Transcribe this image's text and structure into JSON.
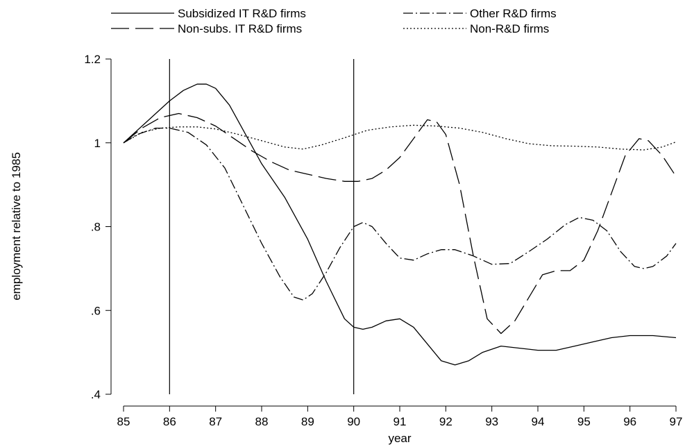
{
  "chart_data": {
    "type": "line",
    "title": "",
    "xlabel": "year",
    "ylabel": "employment relative to 1985",
    "xlim": [
      85,
      97
    ],
    "ylim": [
      0.4,
      1.2
    ],
    "x_ticks": [
      85,
      86,
      87,
      88,
      89,
      90,
      91,
      92,
      93,
      94,
      95,
      96,
      97
    ],
    "x_tick_labels": [
      "85",
      "86",
      "87",
      "88",
      "89",
      "90",
      "91",
      "92",
      "93",
      "94",
      "95",
      "96",
      "97"
    ],
    "y_ticks": [
      0.4,
      0.6,
      0.8,
      1.0,
      1.2
    ],
    "y_tick_labels": [
      ".4",
      ".6",
      ".8",
      "1",
      "1.2"
    ],
    "grid": false,
    "legend_position": "top",
    "reference_lines_x": [
      86,
      90
    ],
    "series": [
      {
        "name": "Subsidized IT R&D firms",
        "style": "solid",
        "points": [
          [
            85,
            1.0
          ],
          [
            85.5,
            1.05
          ],
          [
            86,
            1.1
          ],
          [
            86.3,
            1.125
          ],
          [
            86.6,
            1.14
          ],
          [
            86.8,
            1.14
          ],
          [
            87,
            1.13
          ],
          [
            87.3,
            1.09
          ],
          [
            87.6,
            1.03
          ],
          [
            88,
            0.95
          ],
          [
            88.5,
            0.87
          ],
          [
            89,
            0.77
          ],
          [
            89.4,
            0.67
          ],
          [
            89.8,
            0.58
          ],
          [
            90,
            0.56
          ],
          [
            90.2,
            0.555
          ],
          [
            90.4,
            0.56
          ],
          [
            90.7,
            0.575
          ],
          [
            91,
            0.58
          ],
          [
            91.3,
            0.56
          ],
          [
            91.6,
            0.52
          ],
          [
            91.9,
            0.48
          ],
          [
            92.2,
            0.47
          ],
          [
            92.5,
            0.48
          ],
          [
            92.8,
            0.5
          ],
          [
            93.2,
            0.515
          ],
          [
            93.6,
            0.51
          ],
          [
            94,
            0.505
          ],
          [
            94.4,
            0.505
          ],
          [
            94.8,
            0.515
          ],
          [
            95.2,
            0.525
          ],
          [
            95.6,
            0.535
          ],
          [
            96,
            0.54
          ],
          [
            96.5,
            0.54
          ],
          [
            97,
            0.535
          ]
        ]
      },
      {
        "name": "Non-subs. IT R&D firms",
        "style": "long-dash",
        "points": [
          [
            85,
            1.0
          ],
          [
            85.4,
            1.035
          ],
          [
            85.8,
            1.06
          ],
          [
            86.2,
            1.07
          ],
          [
            86.6,
            1.06
          ],
          [
            87,
            1.04
          ],
          [
            87.4,
            1.01
          ],
          [
            87.8,
            0.98
          ],
          [
            88.2,
            0.955
          ],
          [
            88.6,
            0.935
          ],
          [
            89,
            0.925
          ],
          [
            89.4,
            0.915
          ],
          [
            89.8,
            0.908
          ],
          [
            90.1,
            0.908
          ],
          [
            90.4,
            0.915
          ],
          [
            90.7,
            0.935
          ],
          [
            91,
            0.965
          ],
          [
            91.3,
            1.01
          ],
          [
            91.6,
            1.055
          ],
          [
            91.8,
            1.05
          ],
          [
            92,
            1.02
          ],
          [
            92.3,
            0.9
          ],
          [
            92.6,
            0.73
          ],
          [
            92.9,
            0.58
          ],
          [
            93.2,
            0.545
          ],
          [
            93.5,
            0.575
          ],
          [
            93.8,
            0.63
          ],
          [
            94.1,
            0.685
          ],
          [
            94.4,
            0.695
          ],
          [
            94.7,
            0.695
          ],
          [
            95,
            0.72
          ],
          [
            95.3,
            0.79
          ],
          [
            95.6,
            0.88
          ],
          [
            95.9,
            0.97
          ],
          [
            96.2,
            1.01
          ],
          [
            96.4,
            1.005
          ],
          [
            96.7,
            0.97
          ],
          [
            97,
            0.92
          ]
        ]
      },
      {
        "name": "Other R&D firms",
        "style": "dash-dot",
        "points": [
          [
            85,
            1.0
          ],
          [
            85.3,
            1.02
          ],
          [
            85.7,
            1.035
          ],
          [
            86,
            1.035
          ],
          [
            86.4,
            1.025
          ],
          [
            86.8,
            0.995
          ],
          [
            87.2,
            0.94
          ],
          [
            87.6,
            0.85
          ],
          [
            88,
            0.76
          ],
          [
            88.4,
            0.68
          ],
          [
            88.7,
            0.632
          ],
          [
            88.9,
            0.625
          ],
          [
            89.1,
            0.64
          ],
          [
            89.4,
            0.69
          ],
          [
            89.7,
            0.75
          ],
          [
            90,
            0.8
          ],
          [
            90.2,
            0.81
          ],
          [
            90.4,
            0.8
          ],
          [
            90.7,
            0.76
          ],
          [
            91,
            0.725
          ],
          [
            91.3,
            0.72
          ],
          [
            91.6,
            0.735
          ],
          [
            91.9,
            0.745
          ],
          [
            92.2,
            0.745
          ],
          [
            92.6,
            0.73
          ],
          [
            93,
            0.71
          ],
          [
            93.4,
            0.712
          ],
          [
            93.8,
            0.74
          ],
          [
            94.2,
            0.77
          ],
          [
            94.6,
            0.805
          ],
          [
            94.9,
            0.822
          ],
          [
            95.2,
            0.815
          ],
          [
            95.5,
            0.79
          ],
          [
            95.8,
            0.74
          ],
          [
            96.1,
            0.705
          ],
          [
            96.3,
            0.7
          ],
          [
            96.5,
            0.705
          ],
          [
            96.8,
            0.73
          ],
          [
            97,
            0.76
          ]
        ]
      },
      {
        "name": "Non-R&D firms",
        "style": "dotted",
        "points": [
          [
            85,
            1.0
          ],
          [
            85.4,
            1.025
          ],
          [
            85.8,
            1.035
          ],
          [
            86.2,
            1.038
          ],
          [
            86.6,
            1.038
          ],
          [
            87,
            1.033
          ],
          [
            87.5,
            1.02
          ],
          [
            88,
            1.005
          ],
          [
            88.5,
            0.99
          ],
          [
            88.9,
            0.985
          ],
          [
            89.3,
            0.995
          ],
          [
            89.8,
            1.012
          ],
          [
            90.3,
            1.03
          ],
          [
            90.8,
            1.038
          ],
          [
            91.3,
            1.042
          ],
          [
            91.8,
            1.04
          ],
          [
            92.3,
            1.035
          ],
          [
            92.8,
            1.025
          ],
          [
            93.3,
            1.01
          ],
          [
            93.8,
            0.998
          ],
          [
            94.3,
            0.993
          ],
          [
            94.8,
            0.992
          ],
          [
            95.3,
            0.99
          ],
          [
            95.8,
            0.985
          ],
          [
            96.3,
            0.983
          ],
          [
            96.7,
            0.99
          ],
          [
            97,
            1.002
          ]
        ]
      }
    ]
  }
}
